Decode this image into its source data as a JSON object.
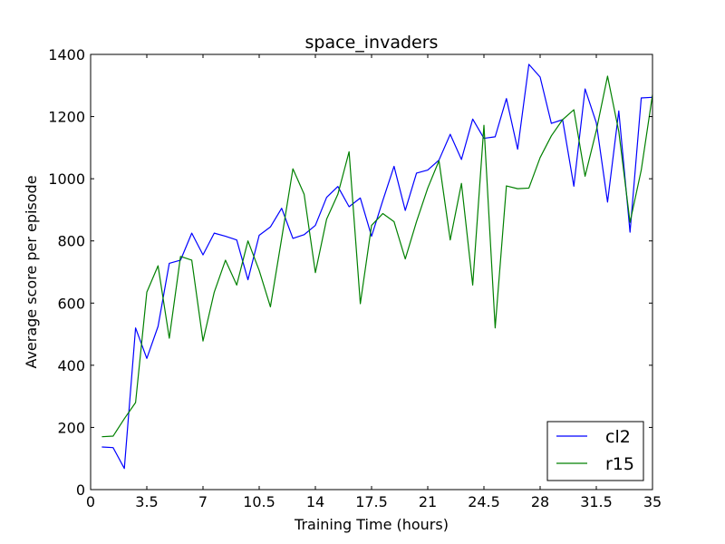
{
  "chart_data": {
    "type": "line",
    "title": "space_invaders",
    "xlabel": "Training Time (hours)",
    "ylabel": "Average score per episode",
    "xlim": [
      0,
      35
    ],
    "ylim": [
      0,
      1400
    ],
    "xticks": [
      0,
      3.5,
      7,
      10.5,
      14,
      17.5,
      21,
      24.5,
      28,
      31.5,
      35
    ],
    "xtick_labels": [
      "0",
      "3.5",
      "7",
      "10.5",
      "14",
      "17.5",
      "21",
      "24.5",
      "28",
      "31.5",
      "35"
    ],
    "yticks": [
      0,
      200,
      400,
      600,
      800,
      1000,
      1200,
      1400
    ],
    "ytick_labels": [
      "0",
      "200",
      "400",
      "600",
      "800",
      "1000",
      "1200",
      "1400"
    ],
    "grid": false,
    "legend": "lower-right",
    "series": [
      {
        "name": "cl2",
        "color": "#0000ff",
        "x": [
          0.7,
          1.4,
          2.1,
          2.8,
          3.5,
          4.2,
          4.9,
          5.6,
          6.3,
          7.0,
          7.7,
          8.4,
          9.1,
          9.8,
          10.5,
          11.2,
          11.9,
          12.6,
          13.3,
          14.0,
          14.7,
          15.4,
          16.1,
          16.8,
          17.5,
          18.2,
          18.9,
          19.6,
          20.3,
          21.0,
          21.7,
          22.4,
          23.1,
          23.8,
          24.5,
          25.2,
          25.9,
          26.6,
          27.3,
          28.0,
          28.7,
          29.4,
          30.1,
          30.8,
          31.5,
          32.2,
          32.9,
          33.6,
          34.3,
          35.0
        ],
        "values": [
          137,
          135,
          68,
          520,
          422,
          525,
          728,
          738,
          825,
          755,
          825,
          815,
          803,
          675,
          818,
          845,
          905,
          808,
          820,
          850,
          940,
          975,
          910,
          938,
          815,
          930,
          1040,
          898,
          1018,
          1028,
          1060,
          1143,
          1062,
          1192,
          1130,
          1135,
          1258,
          1095,
          1368,
          1327,
          1178,
          1190,
          976,
          1289,
          1180,
          925,
          1218,
          828,
          1260,
          1262
        ]
      },
      {
        "name": "r15",
        "color": "#008000",
        "x": [
          0.7,
          1.4,
          2.1,
          2.8,
          3.5,
          4.2,
          4.9,
          5.6,
          6.3,
          7.0,
          7.7,
          8.4,
          9.1,
          9.8,
          10.5,
          11.2,
          11.9,
          12.6,
          13.3,
          14.0,
          14.7,
          15.4,
          16.1,
          16.8,
          17.5,
          18.2,
          18.9,
          19.6,
          20.3,
          21.0,
          21.7,
          22.4,
          23.1,
          23.8,
          24.5,
          25.2,
          25.9,
          26.6,
          27.3,
          28.0,
          28.7,
          29.4,
          30.1,
          30.8,
          31.5,
          32.2,
          32.9,
          33.6,
          34.3,
          35.0
        ],
        "values": [
          170,
          172,
          228,
          280,
          635,
          720,
          487,
          750,
          738,
          478,
          635,
          738,
          658,
          800,
          705,
          588,
          808,
          1032,
          950,
          698,
          870,
          950,
          1087,
          598,
          850,
          888,
          862,
          742,
          862,
          970,
          1058,
          803,
          985,
          658,
          1172,
          520,
          977,
          968,
          970,
          1068,
          1138,
          1190,
          1222,
          1008,
          1155,
          1330,
          1152,
          860,
          1028,
          1270
        ]
      }
    ]
  }
}
